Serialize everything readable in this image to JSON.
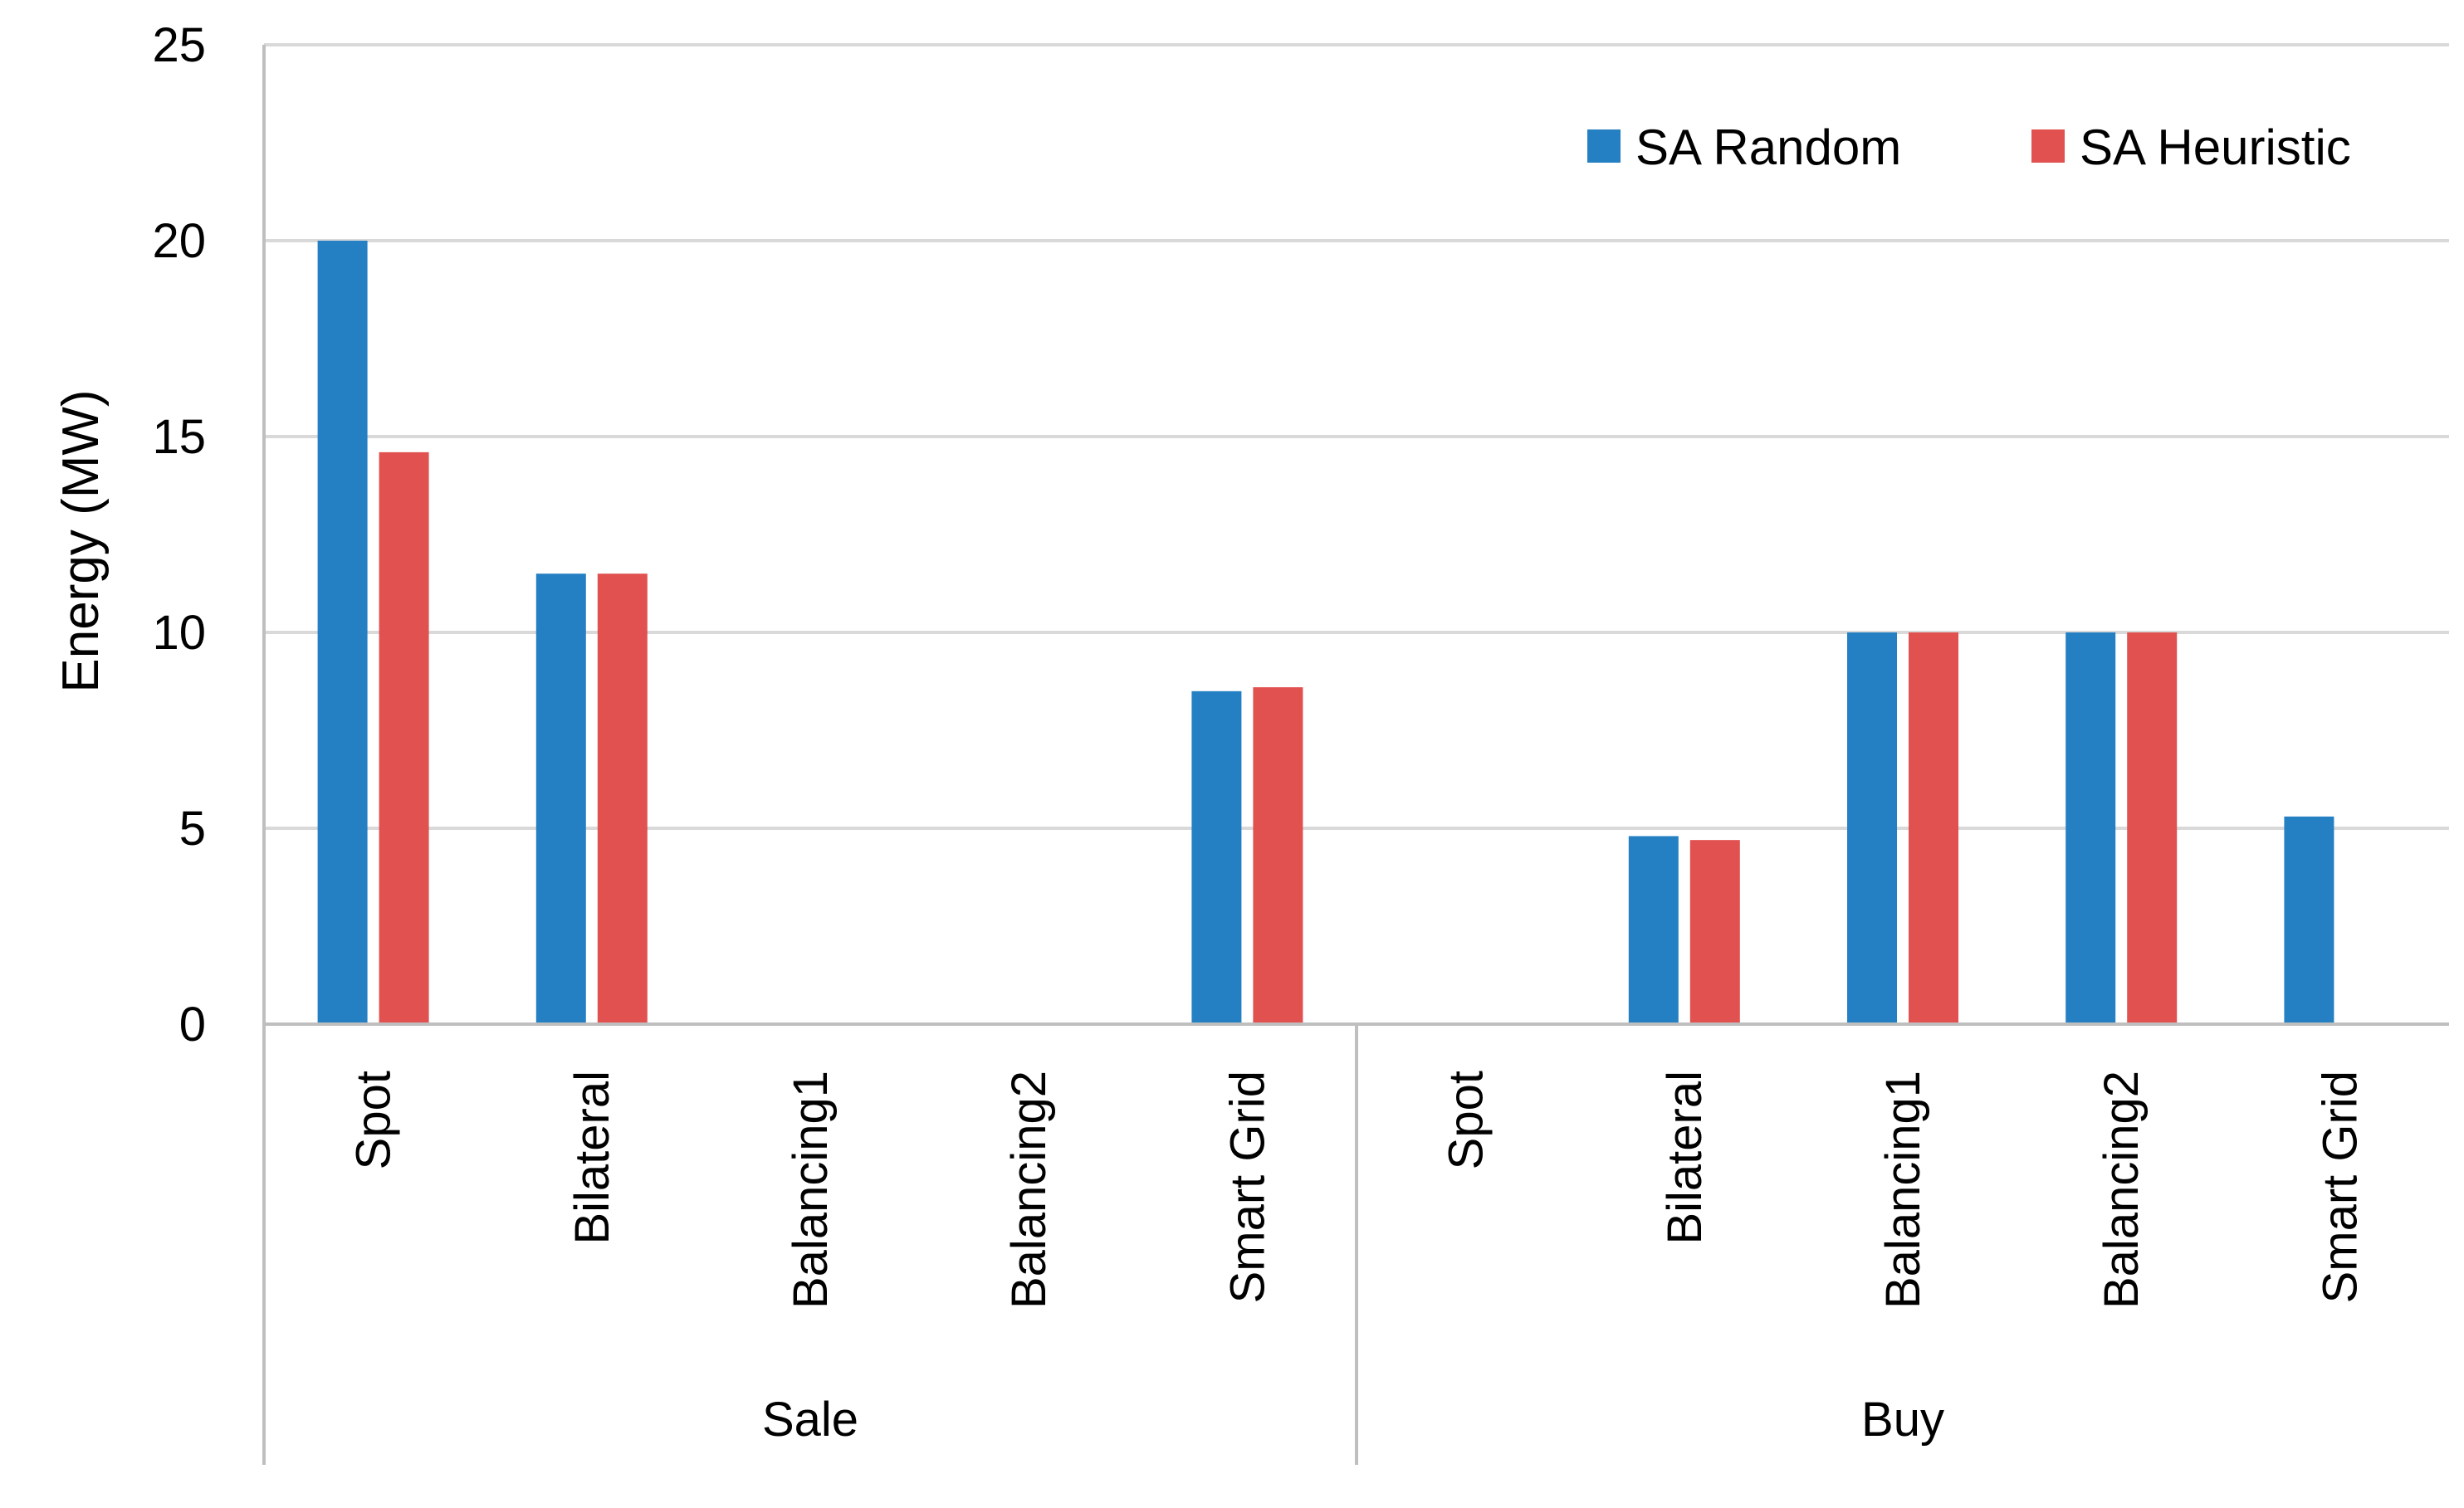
{
  "chart_data": {
    "type": "bar",
    "ylabel": "Energy (MW)",
    "ylim": [
      0,
      25
    ],
    "yticks": [
      0,
      5,
      10,
      15,
      20,
      25
    ],
    "grid": true,
    "legend_position": "top-right",
    "groups": [
      {
        "label": "Sale",
        "categories": [
          "Spot",
          "Bilateral",
          "Balancing1",
          "Balancing2",
          "Smart Grid"
        ]
      },
      {
        "label": "Buy",
        "categories": [
          "Spot",
          "Bilateral",
          "Balancing1",
          "Balancing2",
          "Smart Grid"
        ]
      }
    ],
    "series": [
      {
        "name": "SA Random",
        "color": "#2580c3",
        "values": [
          20.0,
          11.5,
          0,
          0,
          8.5,
          0,
          4.8,
          10.0,
          10.0,
          5.3
        ]
      },
      {
        "name": "SA Heuristic",
        "color": "#e05150",
        "values": [
          14.6,
          11.5,
          0,
          0,
          8.6,
          0,
          4.7,
          10.0,
          10.0,
          0
        ]
      }
    ]
  }
}
